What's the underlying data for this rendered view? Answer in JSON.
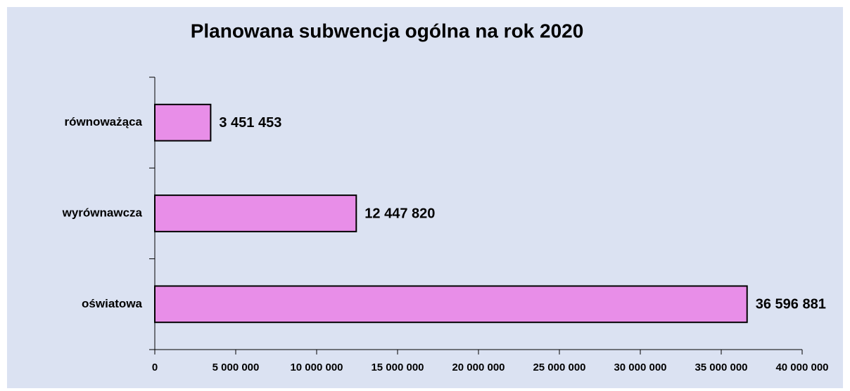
{
  "chart_data": {
    "type": "bar",
    "orientation": "horizontal",
    "title": "Planowana subwencja ogólna na rok 2020",
    "categories": [
      "równoważąca",
      "wyrównawcza",
      "oświatowa"
    ],
    "values": [
      3451453,
      12447820,
      36596881
    ],
    "value_labels": [
      "3 451 453",
      "12 447 820",
      "36 596 881"
    ],
    "color": "#e88ee8",
    "xlim": [
      0,
      40000000
    ],
    "xticks": [
      0,
      {
        "value": 5000000,
        "label": "5 000 000"
      },
      {
        "value": 10000000,
        "label": "10 000 000"
      },
      {
        "value": 15000000,
        "label": "15 000 000"
      },
      {
        "value": 20000000,
        "label": "20 000 000"
      },
      {
        "value": 25000000,
        "label": "25 000 000"
      },
      {
        "value": 30000000,
        "label": "30 000 000"
      },
      {
        "value": 35000000,
        "label": "35 000 000"
      },
      {
        "value": 40000000,
        "label": "40 000 000"
      }
    ]
  }
}
